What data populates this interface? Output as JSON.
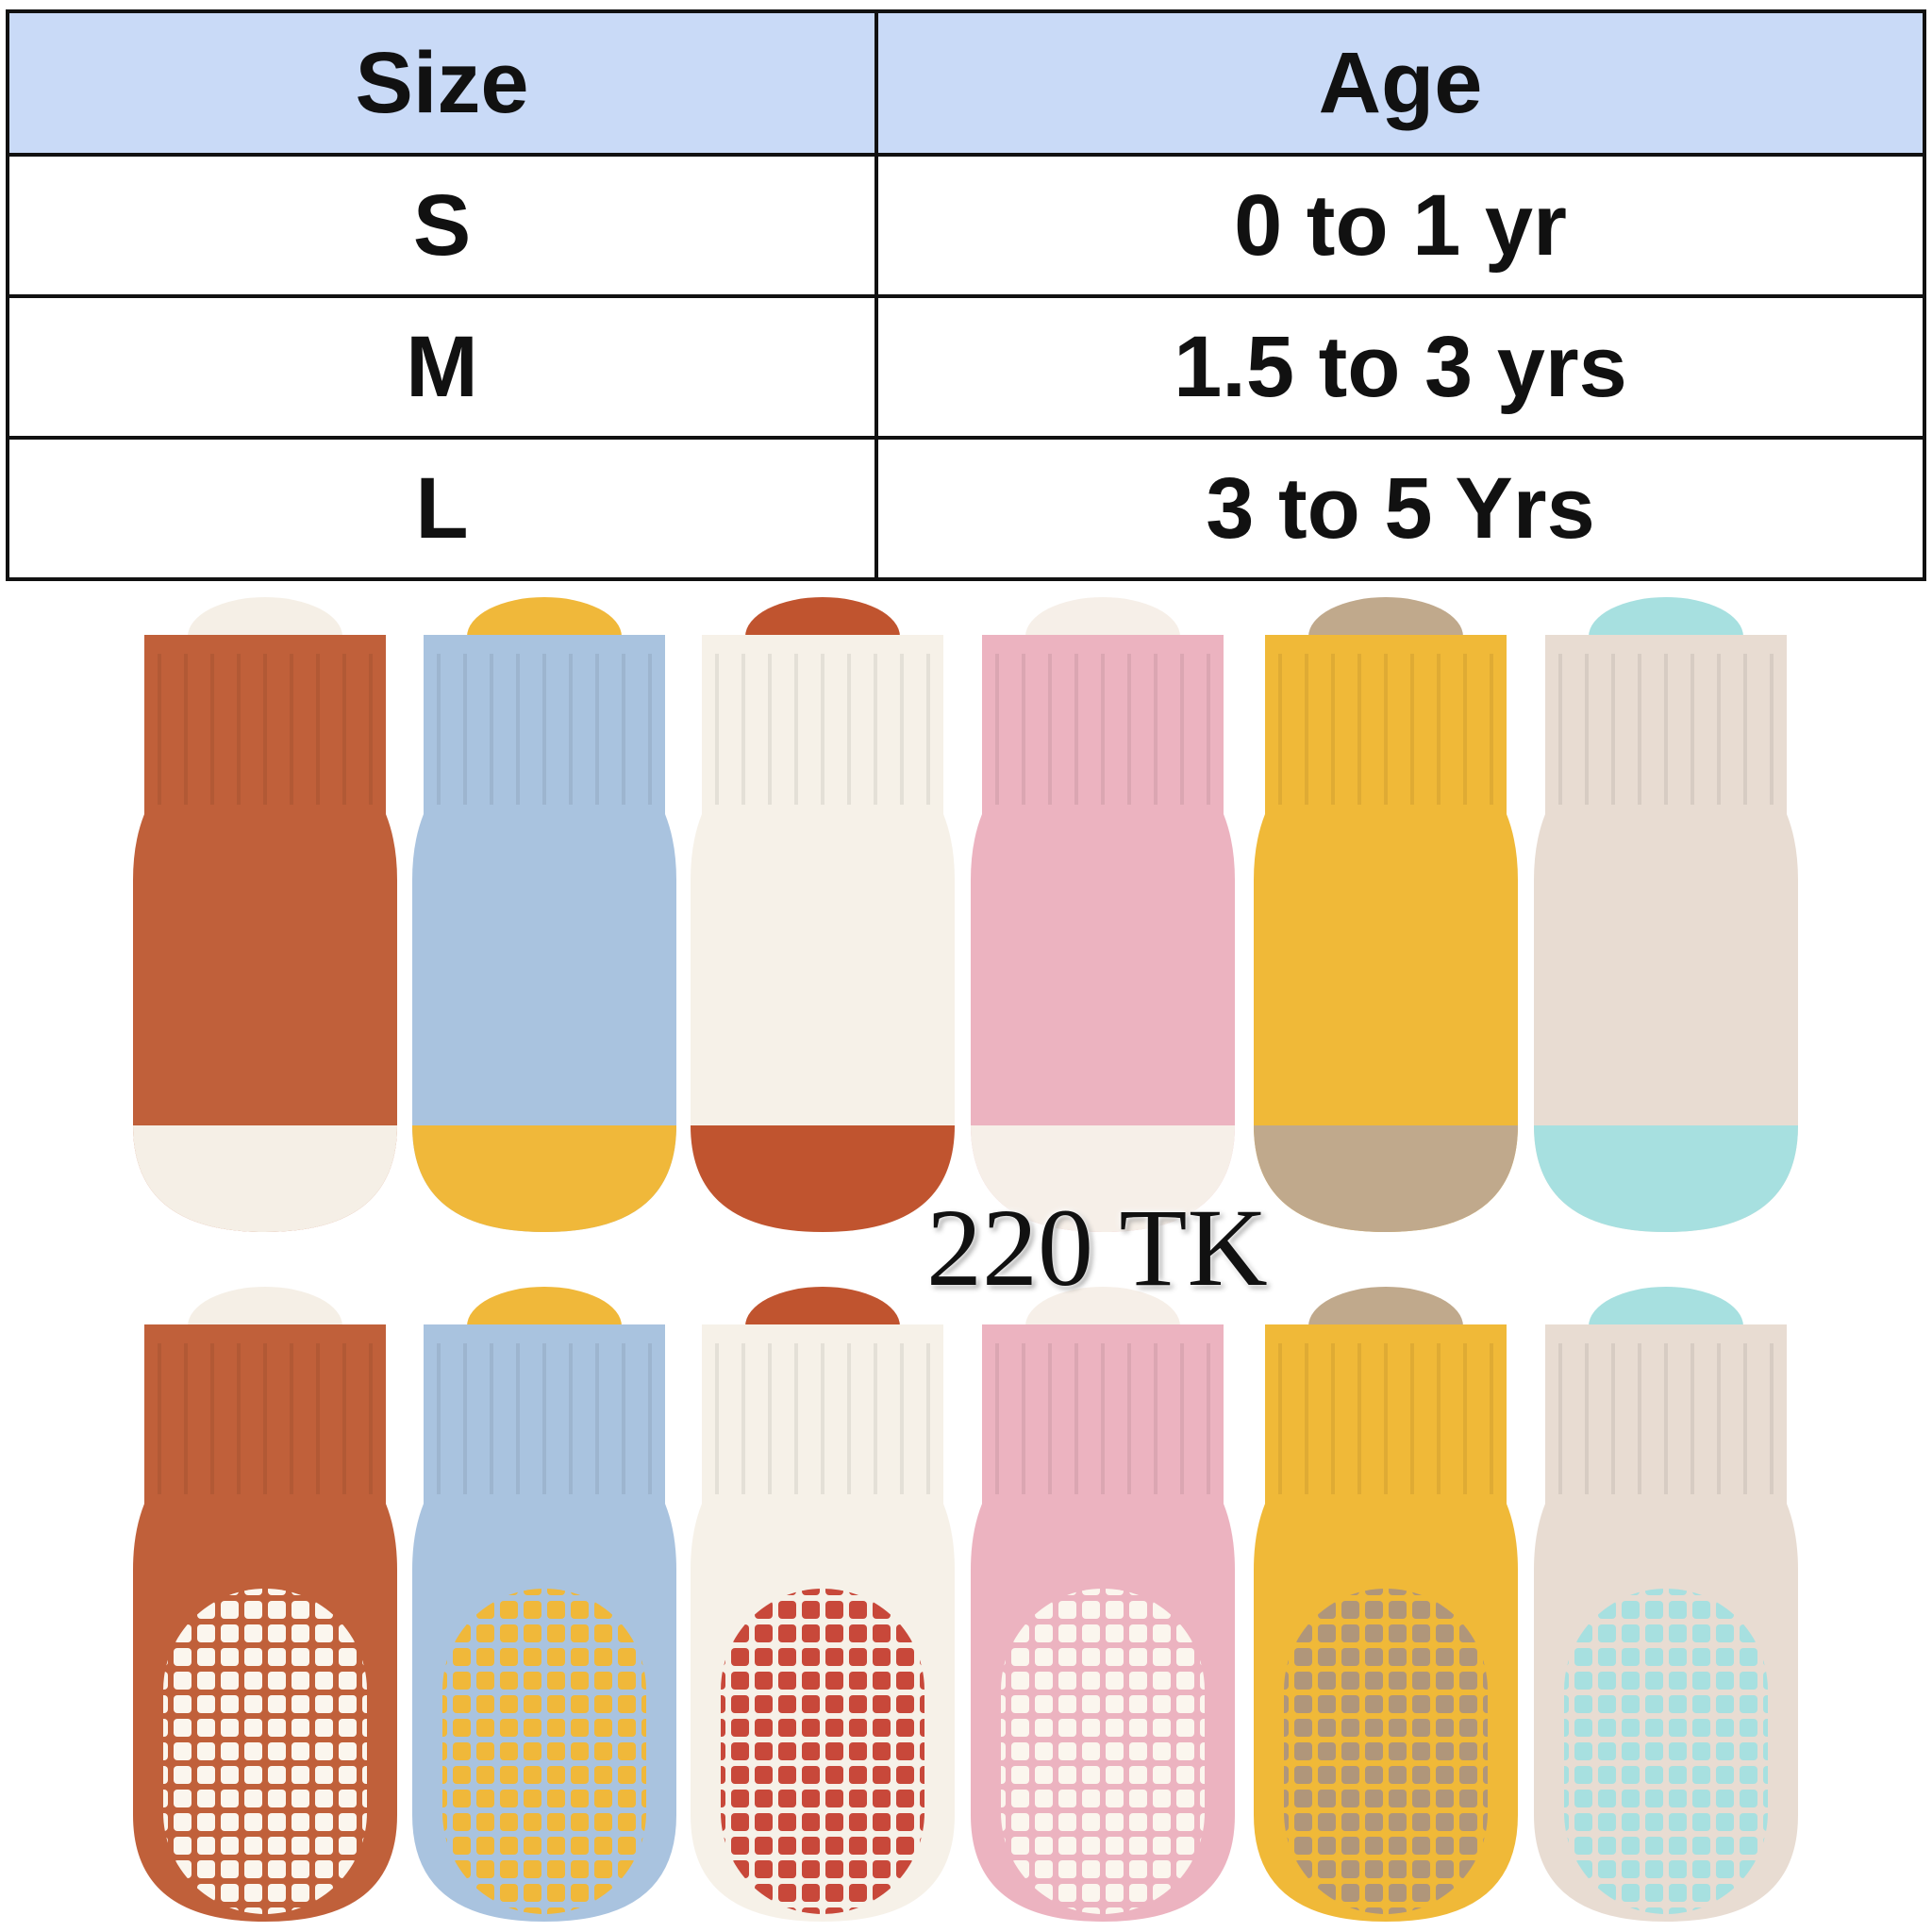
{
  "table": {
    "header": [
      "Size",
      "Age"
    ],
    "rows": [
      [
        "S",
        "0 to 1 yr"
      ],
      [
        "M",
        "1.5 to 3 yrs"
      ],
      [
        "L",
        "3 to 5 Yrs"
      ]
    ]
  },
  "price": "220 TK"
}
